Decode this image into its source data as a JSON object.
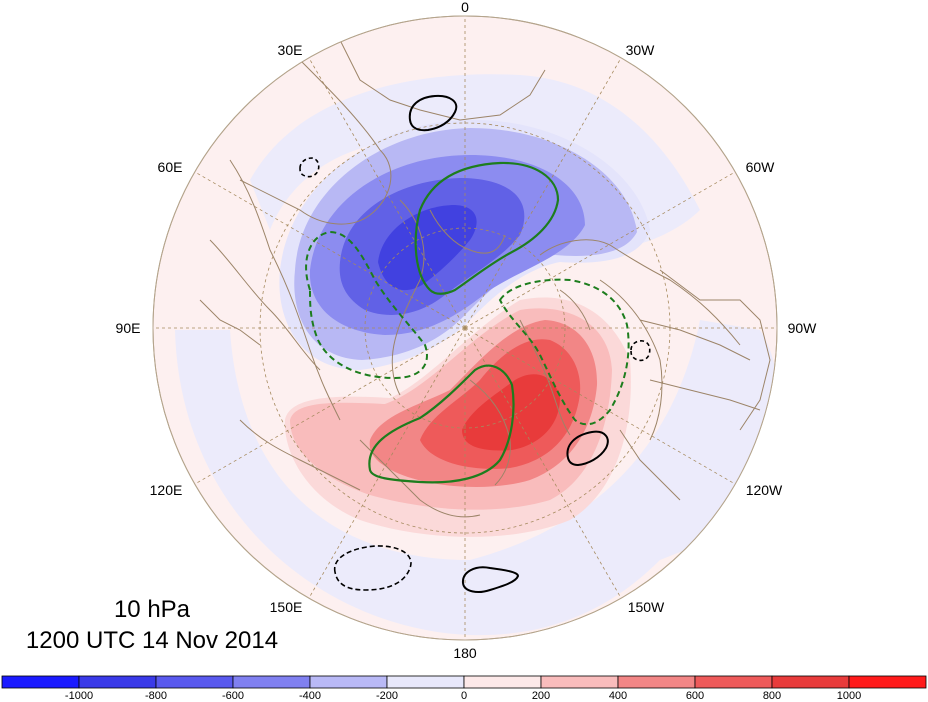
{
  "map": {
    "title_level": "10 hPa",
    "title_time": "1200 UTC 14 Nov 2014",
    "projection": "polar-stereographic-north",
    "longitude_labels": [
      "0",
      "30W",
      "60W",
      "90W",
      "120W",
      "150W",
      "180",
      "150E",
      "120E",
      "90E",
      "60E",
      "30E"
    ]
  },
  "colorbar": {
    "tick_labels": [
      "-1000",
      "-800",
      "-600",
      "-400",
      "-200",
      "0",
      "200",
      "400",
      "600",
      "800",
      "1000"
    ],
    "colors": [
      "#1a1aff",
      "#3a3ae8",
      "#5959ee",
      "#8080f0",
      "#b9b9f6",
      "#e8e8fb",
      "#fde9e9",
      "#f9bcbc",
      "#f28686",
      "#ee5a5a",
      "#e83b3b",
      "#ff1a1a"
    ]
  },
  "colors": {
    "land_outline": "#9c8468",
    "graticule": "#a68a5e",
    "green_contour": "#1d7d1d",
    "black_contour": "#000000",
    "background_pink": "#fdf0f0",
    "background_blue": "#e8e8fb"
  }
}
